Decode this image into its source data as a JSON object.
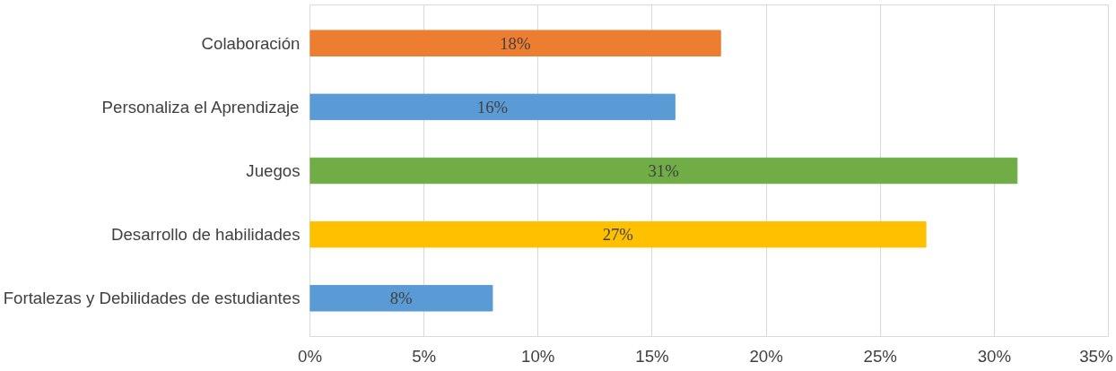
{
  "chart_data": {
    "type": "bar",
    "orientation": "horizontal",
    "categories": [
      "Colaboración",
      "Personaliza el Aprendizaje",
      "Juegos",
      "Desarrollo de habilidades",
      "Fortalezas y Debilidades de estudiantes"
    ],
    "values": [
      18,
      16,
      31,
      27,
      8
    ],
    "colors": [
      "#ed7d31",
      "#5b9bd5",
      "#70ad47",
      "#ffc000",
      "#5b9bd5"
    ],
    "value_labels": [
      "18%",
      "16%",
      "31%",
      "27%",
      "8%"
    ],
    "xlim": [
      0,
      35
    ],
    "xticks": [
      {
        "value": 0,
        "label": "0%"
      },
      {
        "value": 5,
        "label": "5%"
      },
      {
        "value": 10,
        "label": "10%"
      },
      {
        "value": 15,
        "label": "15%"
      },
      {
        "value": 20,
        "label": "20%"
      },
      {
        "value": 25,
        "label": "25%"
      },
      {
        "value": 30,
        "label": "30%"
      },
      {
        "value": 35,
        "label": "35%"
      }
    ],
    "grid": "x"
  }
}
